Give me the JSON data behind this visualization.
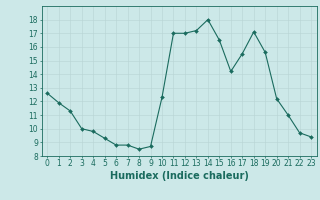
{
  "x": [
    0,
    1,
    2,
    3,
    4,
    5,
    6,
    7,
    8,
    9,
    10,
    11,
    12,
    13,
    14,
    15,
    16,
    17,
    18,
    19,
    20,
    21,
    22,
    23
  ],
  "y": [
    12.6,
    11.9,
    11.3,
    10.0,
    9.8,
    9.3,
    8.8,
    8.8,
    8.5,
    8.7,
    12.3,
    17.0,
    17.0,
    17.2,
    18.0,
    16.5,
    14.2,
    15.5,
    17.1,
    15.6,
    12.2,
    11.0,
    9.7,
    9.4
  ],
  "line_color": "#1a6b5e",
  "marker": "D",
  "marker_size": 2.0,
  "bg_color": "#cce8e8",
  "grid_color": "#b8d4d4",
  "xlabel": "Humidex (Indice chaleur)",
  "ylim": [
    8,
    19
  ],
  "xlim": [
    -0.5,
    23.5
  ],
  "yticks": [
    8,
    9,
    10,
    11,
    12,
    13,
    14,
    15,
    16,
    17,
    18
  ],
  "xticks": [
    0,
    1,
    2,
    3,
    4,
    5,
    6,
    7,
    8,
    9,
    10,
    11,
    12,
    13,
    14,
    15,
    16,
    17,
    18,
    19,
    20,
    21,
    22,
    23
  ],
  "tick_label_size": 5.5,
  "xlabel_size": 7.0,
  "linewidth": 0.8
}
